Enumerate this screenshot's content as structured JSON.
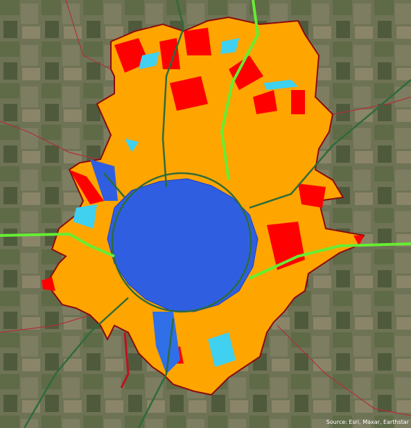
{
  "attribution": {
    "text": "Source: Esri, Maxar, Earthstar"
  }
}
